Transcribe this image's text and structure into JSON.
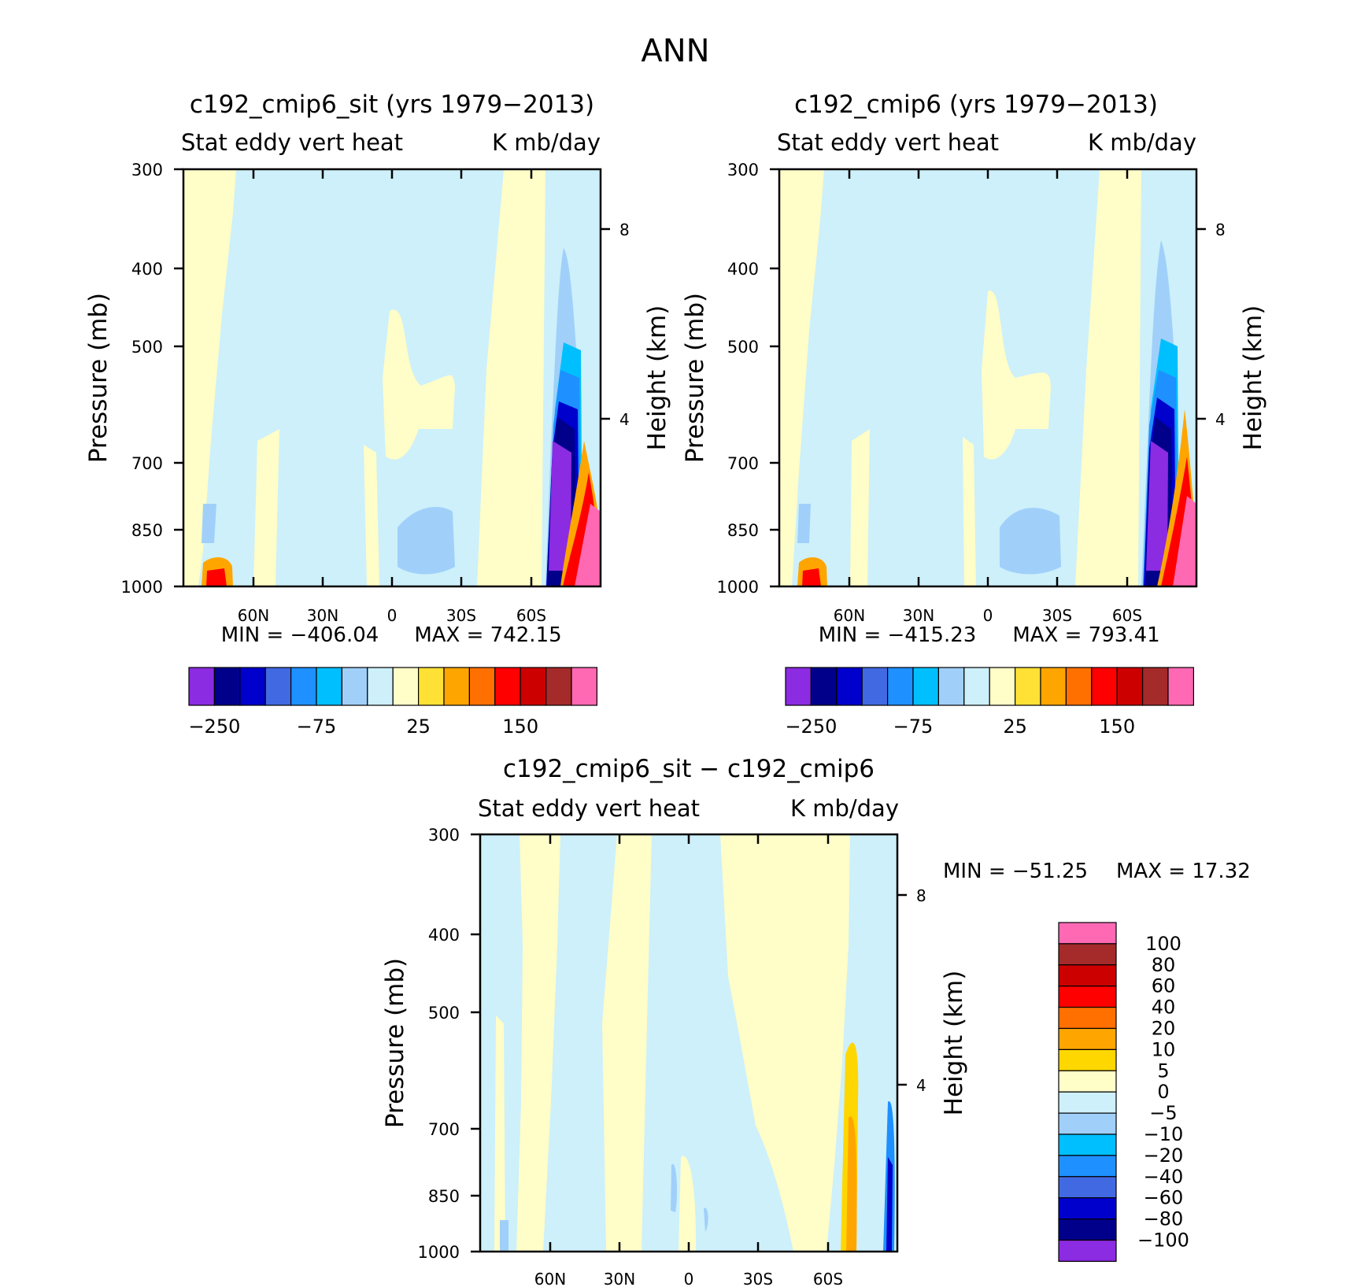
{
  "figure": {
    "title": "ANN"
  },
  "colors": {
    "background_field_positive": "#fffdc8",
    "background_field_negative": "#cdf0fa"
  },
  "chart_data": [
    {
      "type": "contour",
      "id": "panel1",
      "title": "c192_cmip6_sit (yrs 1979−2013)",
      "variable_label": "Stat eddy vert heat",
      "units_label": "K mb/day",
      "ylabel": "Pressure (mb)",
      "ylabel_right": "Height (km)",
      "x_ticks": [
        "60N",
        "30N",
        "0",
        "30S",
        "60S"
      ],
      "y_ticks": [
        "300",
        "400",
        "500",
        "700",
        "850",
        "1000"
      ],
      "y_ticks_right": [
        "8",
        "4"
      ],
      "min_label": "MIN = −406.04",
      "max_label": "MAX = 742.15",
      "colorbar": {
        "colors": [
          "#8b2be2",
          "#00008b",
          "#0000cd",
          "#4169e1",
          "#1e90ff",
          "#00bfff",
          "#a0d0fa",
          "#cdf0fa",
          "#fffdc8",
          "#ffe135",
          "#ffa500",
          "#ff7000",
          "#ff0000",
          "#cd0000",
          "#a52a2a",
          "#ff69b4"
        ],
        "labels": [
          "−250",
          "−75",
          "25",
          "150"
        ]
      }
    },
    {
      "type": "contour",
      "id": "panel2",
      "title": "c192_cmip6 (yrs 1979−2013)",
      "variable_label": "Stat eddy vert heat",
      "units_label": "K mb/day",
      "ylabel": "Pressure (mb)",
      "ylabel_right": "Height (km)",
      "x_ticks": [
        "60N",
        "30N",
        "0",
        "30S",
        "60S"
      ],
      "y_ticks": [
        "300",
        "400",
        "500",
        "700",
        "850",
        "1000"
      ],
      "y_ticks_right": [
        "8",
        "4"
      ],
      "min_label": "MIN = −415.23",
      "max_label": "MAX = 793.41",
      "colorbar": {
        "colors": [
          "#8b2be2",
          "#00008b",
          "#0000cd",
          "#4169e1",
          "#1e90ff",
          "#00bfff",
          "#a0d0fa",
          "#cdf0fa",
          "#fffdc8",
          "#ffe135",
          "#ffa500",
          "#ff7000",
          "#ff0000",
          "#cd0000",
          "#a52a2a",
          "#ff69b4"
        ],
        "labels": [
          "−250",
          "−75",
          "25",
          "150"
        ]
      }
    },
    {
      "type": "contour",
      "id": "panel3",
      "title": "c192_cmip6_sit − c192_cmip6",
      "variable_label": "Stat eddy vert heat",
      "units_label": "K mb/day",
      "ylabel": "Pressure (mb)",
      "ylabel_right": "Height (km)",
      "x_ticks": [
        "60N",
        "30N",
        "0",
        "30S",
        "60S"
      ],
      "y_ticks": [
        "300",
        "400",
        "500",
        "700",
        "850",
        "1000"
      ],
      "y_ticks_right": [
        "8",
        "4"
      ],
      "min_label": "MIN = −51.25",
      "max_label": "MAX =  17.32",
      "colorbar": {
        "colors": [
          "#ff69b4",
          "#a52a2a",
          "#cd0000",
          "#ff0000",
          "#ff7000",
          "#ffa500",
          "#ffd700",
          "#fffdc8",
          "#cdf0fa",
          "#a0d0fa",
          "#00bfff",
          "#1e90ff",
          "#4169e1",
          "#0000cd",
          "#00008b",
          "#8b2be2"
        ],
        "labels": [
          "100",
          "80",
          "60",
          "40",
          "20",
          "10",
          "5",
          "0",
          "−5",
          "−10",
          "−20",
          "−40",
          "−60",
          "−80",
          "−100"
        ]
      }
    }
  ]
}
